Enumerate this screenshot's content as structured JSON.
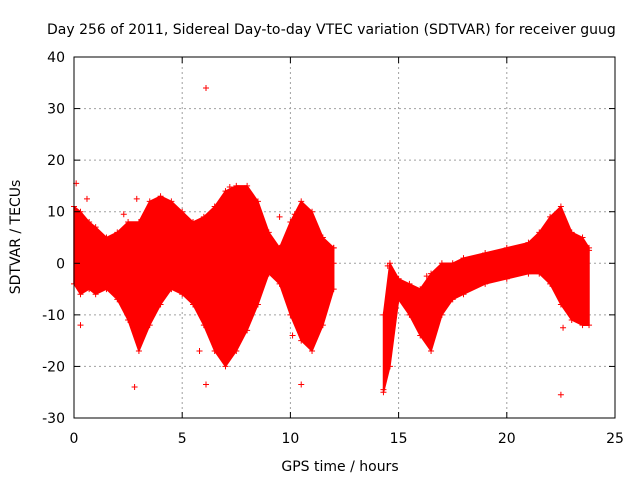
{
  "chart_data": {
    "type": "scatter",
    "title": "Day 256 of 2011, Sidereal Day-to-day VTEC variation (SDTVAR) for receiver guug",
    "xlabel": "GPS time / hours",
    "ylabel": "SDTVAR / TECUs",
    "xlim": [
      0,
      25
    ],
    "ylim": [
      -30,
      40
    ],
    "xticks": [
      0,
      5,
      10,
      15,
      20,
      25
    ],
    "yticks": [
      -30,
      -20,
      -10,
      0,
      10,
      20,
      30,
      40
    ],
    "xtick_labels": [
      "0",
      "5",
      "10",
      "15",
      "20",
      "25"
    ],
    "ytick_labels": [
      "-30",
      "-20",
      "-10",
      "0",
      "10",
      "20",
      "30",
      "40"
    ],
    "grid": true,
    "grid_style": "dotted",
    "marker": "+",
    "color": "#ff0000",
    "series": [
      {
        "name": "SDTVAR",
        "segments": [
          {
            "x": [
              0.0,
              0.3,
              0.7,
              1.0,
              1.5,
              2.0,
              2.5,
              3.0,
              3.5,
              4.0,
              4.5,
              5.0,
              5.5,
              6.0,
              6.5,
              7.0,
              7.5,
              8.0,
              8.5,
              9.0,
              9.5,
              10.0,
              10.5,
              11.0,
              11.5,
              12.0
            ],
            "upper": [
              11,
              10,
              8,
              7,
              5,
              6,
              8,
              8,
              12,
              13,
              12,
              10,
              8,
              9,
              11,
              14,
              15,
              15,
              12,
              6,
              3,
              8,
              12,
              10,
              5,
              3
            ],
            "lower": [
              -4,
              -6,
              -5,
              -6,
              -5,
              -7,
              -11,
              -17,
              -12,
              -8,
              -5,
              -6,
              -8,
              -12,
              -17,
              -20,
              -17,
              -13,
              -8,
              -2,
              -4,
              -10,
              -15,
              -17,
              -12,
              -5
            ]
          },
          {
            "x": [
              14.3,
              14.6,
              15.0,
              15.5,
              16.0,
              16.5,
              17.0,
              17.5,
              18.0,
              19.0,
              20.0,
              21.0,
              21.5,
              22.0,
              22.5,
              23.0,
              23.5,
              23.8
            ],
            "upper": [
              -10,
              0,
              -3,
              -4,
              -5,
              -2,
              0,
              0,
              1,
              2,
              3,
              4,
              6,
              9,
              11,
              6,
              5,
              3
            ],
            "lower": [
              -25,
              -20,
              -7,
              -10,
              -14,
              -17,
              -10,
              -7,
              -6,
              -4,
              -3,
              -2,
              -2,
              -4,
              -8,
              -11,
              -12,
              -12
            ]
          }
        ],
        "outliers": [
          [
            0.1,
            15.5
          ],
          [
            0.3,
            -12
          ],
          [
            0.6,
            12.5
          ],
          [
            2.9,
            12.5
          ],
          [
            2.8,
            -24
          ],
          [
            2.3,
            9.5
          ],
          [
            6.1,
            34
          ],
          [
            6.1,
            -23.5
          ],
          [
            5.8,
            -17
          ],
          [
            7.2,
            14.8
          ],
          [
            9.5,
            9
          ],
          [
            10.2,
            9.5
          ],
          [
            10.1,
            -14
          ],
          [
            10.5,
            -23.5
          ],
          [
            12.0,
            3
          ],
          [
            12.0,
            0
          ],
          [
            14.3,
            -24.5
          ],
          [
            14.5,
            -0.5
          ],
          [
            16.3,
            -2.5
          ],
          [
            22.5,
            -25.5
          ],
          [
            22.6,
            -12.5
          ],
          [
            23.8,
            2.5
          ]
        ]
      }
    ]
  }
}
